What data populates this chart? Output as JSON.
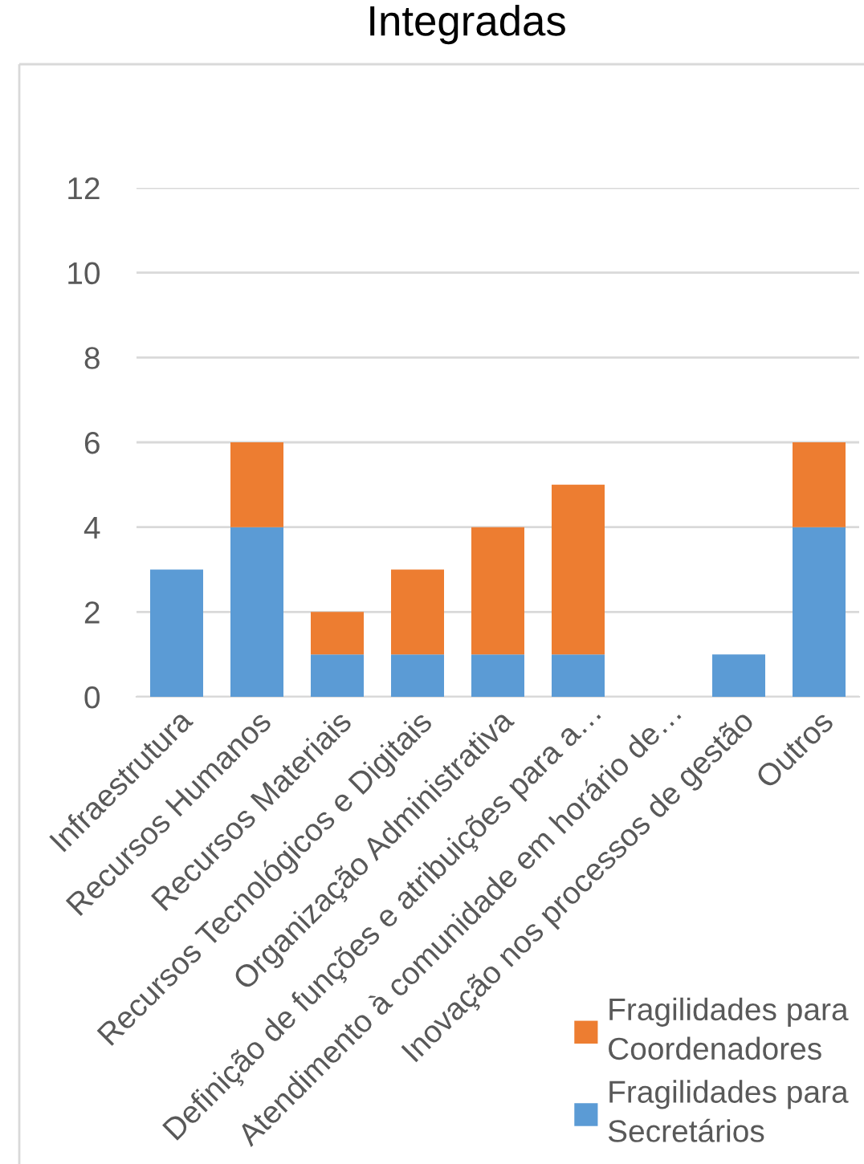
{
  "chart_data": {
    "type": "bar",
    "title": "Integradas",
    "categories": [
      "Infraestrutura",
      "Recursos Humanos",
      "Recursos Materiais",
      "Recursos Tecnológicos e Digitais",
      "Organização Administrativa",
      "Definição de funções e atribuições para a…",
      "Atendimento à comunidade em horário de…",
      "Inovação nos processos de gestão",
      "Outros"
    ],
    "series": [
      {
        "name": "Fragilidades para Secretários",
        "color": "#5b9bd5",
        "values": [
          3,
          4,
          1,
          1,
          1,
          1,
          0,
          1,
          4
        ]
      },
      {
        "name": "Fragilidades para Coordenadores",
        "color": "#ed7d31",
        "values": [
          0,
          2,
          1,
          2,
          3,
          4,
          0,
          0,
          2
        ]
      }
    ],
    "stacked": true,
    "ylim": [
      0,
      12
    ],
    "yticks": [
      0,
      2,
      4,
      6,
      8,
      10,
      12
    ],
    "grid": "y",
    "legend": "bottom right"
  }
}
